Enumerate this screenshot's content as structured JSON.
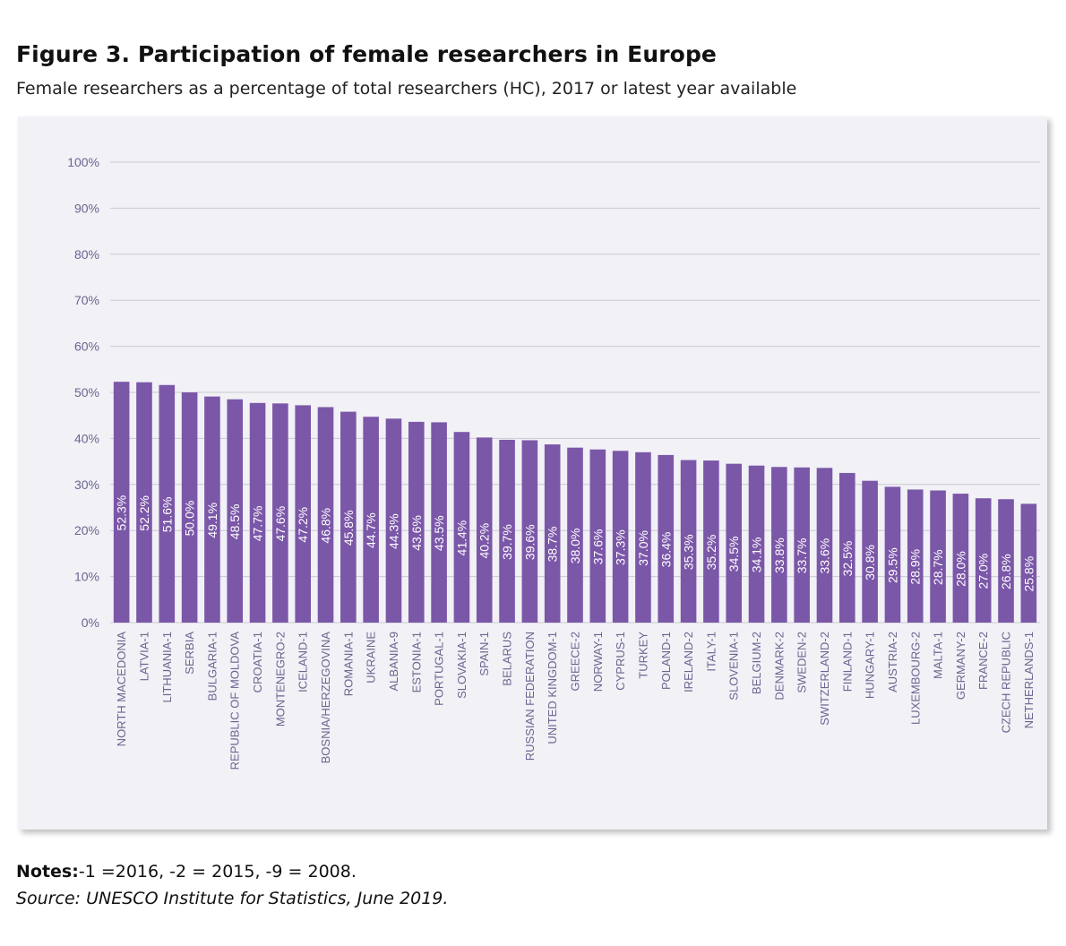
{
  "figure": {
    "title": "Figure 3. Participation of female researchers in Europe",
    "subtitle": "Female researchers as a percentage of total researchers (HC), 2017 or latest year available",
    "notes_label": "Notes:",
    "notes_text": "-1 =2016, -2 = 2015, -9 = 2008.",
    "source": "Source: UNESCO Institute for Statistics, June 2019."
  },
  "colors": {
    "bar": "#7b57a8",
    "label": "#ffffff",
    "tick": "#6a6690",
    "grid": "#c9c9d2",
    "background": "#f1f1f6"
  },
  "chart_data": {
    "type": "bar",
    "orientation": "vertical",
    "title": "",
    "xlabel": "",
    "ylabel": "",
    "ylim": [
      0,
      100
    ],
    "yticks": [
      0,
      10,
      20,
      30,
      40,
      50,
      60,
      70,
      80,
      90,
      100
    ],
    "ytick_labels": [
      "0%",
      "10%",
      "20%",
      "30%",
      "40%",
      "50%",
      "60%",
      "70%",
      "80%",
      "90%",
      "100%"
    ],
    "grid": true,
    "legend": "none",
    "categories": [
      "NORTH MACEDONIA",
      "LATVIA-1",
      "LITHUANIA-1",
      "SERBIA",
      "BULGARIA-1",
      "REPUBLIC OF MOLDOVA",
      "CROATIA-1",
      "MONTENEGRO-2",
      "ICELAND-1",
      "BOSNIA/HERZEGOVINA",
      "ROMANIA-1",
      "UKRAINE",
      "ALBANIA-9",
      "ESTONIA-1",
      "PORTUGAL-1",
      "SLOVAKIA-1",
      "SPAIN-1",
      "BELARUS",
      "RUSSIAN FEDERATION",
      "UNITED KINGDOM-1",
      "GREECE-2",
      "NORWAY-1",
      "CYPRUS-1",
      "TURKEY",
      "POLAND-1",
      "IRELAND-2",
      "ITALY-1",
      "SLOVENIA-1",
      "BELGIUM-2",
      "DENMARK-2",
      "SWEDEN-2",
      "SWITZERLAND-2",
      "FINLAND-1",
      "HUNGARY-1",
      "AUSTRIA-2",
      "LUXEMBOURG-2",
      "MALTA-1",
      "GERMANY-2",
      "FRANCE-2",
      "CZECH REPUBLIC",
      "NETHERLANDS-1"
    ],
    "values": [
      52.3,
      52.2,
      51.6,
      50.0,
      49.1,
      48.5,
      47.7,
      47.6,
      47.2,
      46.8,
      45.8,
      44.7,
      44.3,
      43.6,
      43.5,
      41.4,
      40.2,
      39.7,
      39.6,
      38.7,
      38.0,
      37.6,
      37.3,
      37.0,
      36.4,
      35.3,
      35.2,
      34.5,
      34.1,
      33.8,
      33.7,
      33.6,
      32.5,
      30.8,
      29.5,
      28.9,
      28.7,
      28.0,
      27.0,
      26.8,
      25.8
    ],
    "data_labels": [
      "52.3%",
      "52.2%",
      "51.6%",
      "50.0%",
      "49.1%",
      "48.5%",
      "47.7%",
      "47.6%",
      "47.2%",
      "46.8%",
      "45.8%",
      "44.7%",
      "44.3%",
      "43.6%",
      "43.5%",
      "41.4%",
      "40.2%",
      "39.7%",
      "39.6%",
      "38.7%",
      "38.0%",
      "37.6%",
      "37.3%",
      "37.0%",
      "36.4%",
      "35.3%",
      "35.2%",
      "34.5%",
      "34.1%",
      "33.8%",
      "33.7%",
      "33.6%",
      "32.5%",
      "30.8%",
      "29.5%",
      "28.9%",
      "28.7%",
      "28.0%",
      "27.0%",
      "26.8%",
      "25.8%"
    ]
  }
}
